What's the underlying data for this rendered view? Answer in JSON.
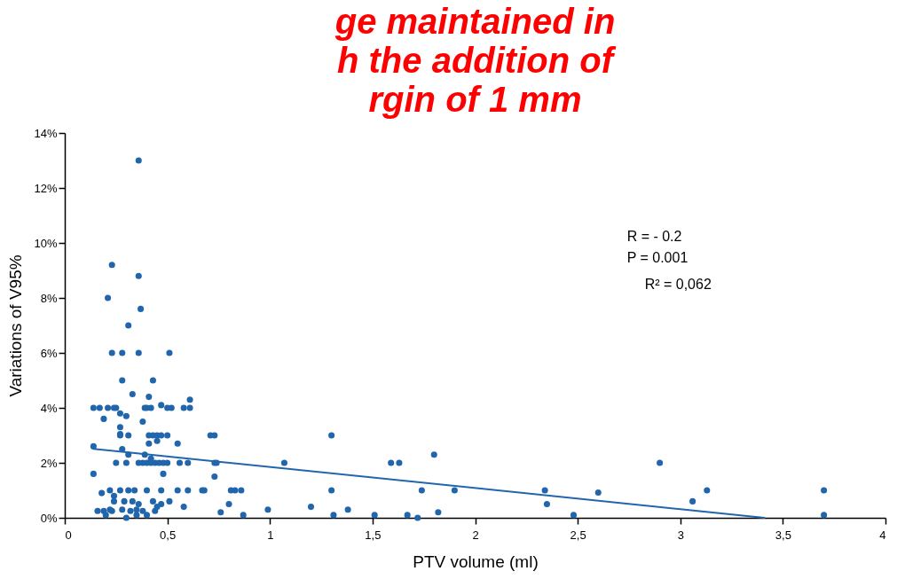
{
  "chart_data": {
    "type": "scatter",
    "title": "ge  maintained  in\nh  the  addition  of\nrgin of 1 mm",
    "xlabel": "PTV volume (ml)",
    "ylabel": "Variations of V95%",
    "xlim": [
      0,
      4
    ],
    "xticks": [
      0,
      {
        "value": 0.5,
        "label": "0,5"
      },
      1,
      {
        "value": 1.5,
        "label": "1,5"
      },
      2,
      {
        "value": 2.5,
        "label": "2,5"
      },
      3,
      {
        "value": 3.5,
        "label": "3,5"
      },
      4
    ],
    "ylim": [
      0,
      14
    ],
    "yticks": [
      {
        "value": 0,
        "label": "0%"
      },
      {
        "value": 2,
        "label": "2%"
      },
      {
        "value": 4,
        "label": "4%"
      },
      {
        "value": 6,
        "label": "6%"
      },
      {
        "value": 8,
        "label": "8%"
      },
      {
        "value": 10,
        "label": "10%"
      },
      {
        "value": 12,
        "label": "12%"
      },
      {
        "value": 14,
        "label": "14%"
      }
    ],
    "grid": false,
    "marker": "circle",
    "annotations": [
      "R = - 0.2",
      "P = 0.001",
      "R² = 0,062"
    ],
    "series": [
      {
        "color": "#2166ac",
        "x": [
          0.36,
          0.23,
          0.36,
          0.21,
          0.37,
          0.31,
          0.23,
          0.28,
          0.36,
          0.51,
          0.28,
          0.43,
          0.33,
          0.41,
          0.61,
          0.47,
          0.14,
          0.17,
          0.21,
          0.24,
          0.25,
          0.39,
          0.4,
          0.42,
          0.5,
          0.52,
          0.58,
          0.61,
          0.27,
          0.3,
          0.19,
          0.38,
          0.27,
          0.27,
          0.27,
          0.31,
          0.41,
          0.43,
          0.45,
          0.47,
          0.5,
          0.71,
          0.73,
          1.3,
          0.45,
          0.41,
          0.55,
          0.14,
          0.28,
          0.31,
          0.39,
          0.42,
          1.8,
          0.25,
          0.3,
          0.36,
          0.38,
          0.4,
          0.42,
          0.44,
          0.46,
          0.48,
          0.5,
          0.56,
          0.6,
          0.73,
          0.74,
          1.07,
          1.59,
          1.63,
          2.9,
          0.14,
          0.48,
          0.73,
          0.22,
          0.27,
          0.31,
          0.34,
          0.4,
          0.47,
          0.55,
          0.6,
          0.67,
          0.68,
          0.81,
          0.83,
          0.86,
          1.3,
          1.74,
          1.9,
          2.34,
          3.13,
          3.7,
          2.6,
          2.35,
          3.06,
          0.18,
          0.24,
          0.24,
          0.29,
          0.33,
          0.43,
          0.51,
          0.36,
          0.47,
          0.58,
          0.8,
          0.45,
          0.16,
          0.19,
          0.22,
          0.23,
          0.28,
          0.32,
          0.35,
          0.38,
          0.44,
          0.2,
          0.3,
          0.35,
          0.4,
          0.76,
          0.87,
          0.99,
          1.2,
          1.31,
          1.38,
          1.51,
          1.67,
          1.72,
          1.82,
          2.48,
          3.7
        ],
        "values": [
          13.0,
          9.2,
          8.8,
          8.0,
          7.6,
          7.0,
          6.0,
          6.0,
          6.0,
          6.0,
          5.0,
          5.0,
          4.5,
          4.4,
          4.3,
          4.1,
          4.0,
          4.0,
          4.0,
          4.0,
          4.0,
          4.0,
          4.0,
          4.0,
          4.0,
          4.0,
          4.0,
          4.0,
          3.8,
          3.7,
          3.6,
          3.5,
          3.3,
          3.05,
          3.0,
          3.0,
          3.0,
          3.0,
          3.0,
          3.0,
          3.0,
          3.0,
          3.0,
          3.0,
          2.8,
          2.7,
          2.7,
          2.6,
          2.5,
          2.3,
          2.3,
          2.15,
          2.3,
          2.0,
          2.0,
          2.0,
          2.0,
          2.0,
          2.0,
          2.0,
          2.0,
          2.0,
          2.0,
          2.0,
          2.0,
          2.0,
          2.0,
          2.0,
          2.0,
          2.0,
          2.0,
          1.6,
          1.6,
          1.5,
          1.0,
          1.0,
          1.0,
          1.0,
          1.0,
          1.0,
          1.0,
          1.0,
          1.0,
          1.0,
          1.0,
          1.0,
          1.0,
          1.0,
          1.0,
          1.0,
          1.0,
          1.0,
          1.0,
          0.92,
          0.5,
          0.6,
          0.9,
          0.8,
          0.6,
          0.6,
          0.6,
          0.6,
          0.6,
          0.5,
          0.5,
          0.4,
          0.5,
          0.4,
          0.25,
          0.25,
          0.3,
          0.25,
          0.3,
          0.25,
          0.3,
          0.25,
          0.25,
          0.1,
          0.0,
          0.1,
          0.1,
          0.2,
          0.1,
          0.3,
          0.4,
          0.1,
          0.3,
          0.1,
          0.1,
          0.0,
          0.2,
          0.1,
          0.1
        ]
      },
      {
        "type": "line",
        "marker": "none",
        "color": "#2166ac",
        "x": [
          0.14,
          3.41
        ],
        "values": [
          2.51,
          0
        ]
      }
    ]
  }
}
